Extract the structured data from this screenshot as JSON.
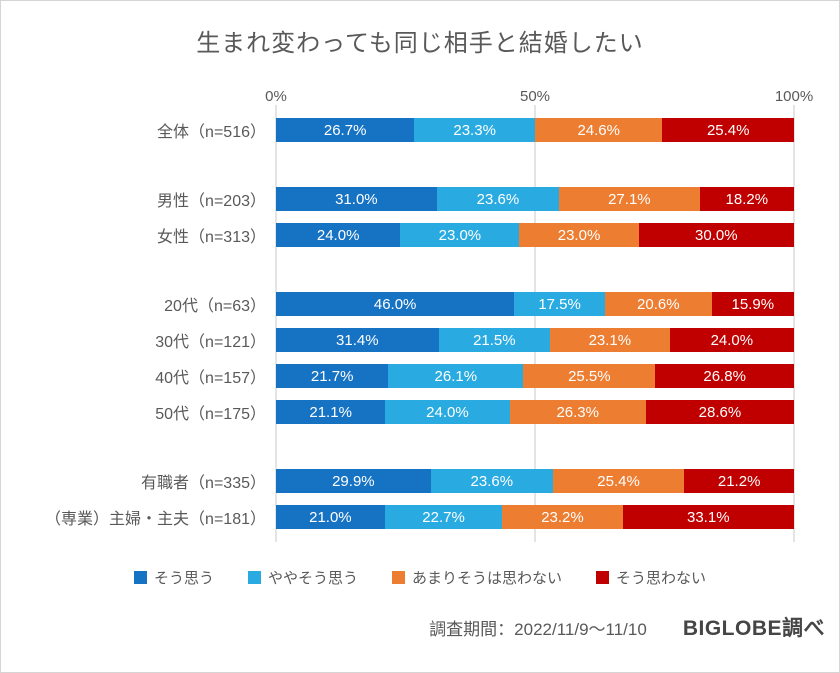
{
  "title": "生まれ変わっても同じ相手と結婚したい",
  "footer": {
    "survey_period": "調査期間：2022/11/9～11/10",
    "source": "BIGLOBE調べ"
  },
  "chart_data": {
    "type": "bar",
    "stacked": true,
    "orientation": "horizontal",
    "title": "生まれ変わっても同じ相手と結婚したい",
    "value_unit": "%",
    "x_axis": {
      "ticks": [
        "0%",
        "50%",
        "100%"
      ],
      "range": [
        0,
        100
      ]
    },
    "grid": "vertical lines at 0%, 50%, 100%",
    "legend_position": "bottom",
    "series_labels": [
      "そう思う",
      "ややそう思う",
      "あまりそうは思わない",
      "そう思わない"
    ],
    "series_colors": [
      "#1673c4",
      "#29abe2",
      "#ed7d31",
      "#c00000"
    ],
    "label_color": "#595959",
    "groups": [
      {
        "rows": [
          {
            "label": "全体（n=516）",
            "values": [
              26.7,
              23.3,
              24.6,
              25.4
            ]
          }
        ]
      },
      {
        "rows": [
          {
            "label": "男性（n=203）",
            "values": [
              31.0,
              23.6,
              27.1,
              18.2
            ]
          },
          {
            "label": "女性（n=313）",
            "values": [
              24.0,
              23.0,
              23.0,
              30.0
            ]
          }
        ]
      },
      {
        "rows": [
          {
            "label": "20代（n=63）",
            "values": [
              46.0,
              17.5,
              20.6,
              15.9
            ]
          },
          {
            "label": "30代（n=121）",
            "values": [
              31.4,
              21.5,
              23.1,
              24.0
            ]
          },
          {
            "label": "40代（n=157）",
            "values": [
              21.7,
              26.1,
              25.5,
              26.8
            ]
          },
          {
            "label": "50代（n=175）",
            "values": [
              21.1,
              24.0,
              26.3,
              28.6
            ]
          }
        ]
      },
      {
        "rows": [
          {
            "label": "有職者（n=335）",
            "values": [
              29.9,
              23.6,
              25.4,
              21.2
            ]
          },
          {
            "label": "（専業）主婦・主夫（n=181）",
            "values": [
              21.0,
              22.7,
              23.2,
              33.1
            ]
          }
        ]
      }
    ]
  }
}
